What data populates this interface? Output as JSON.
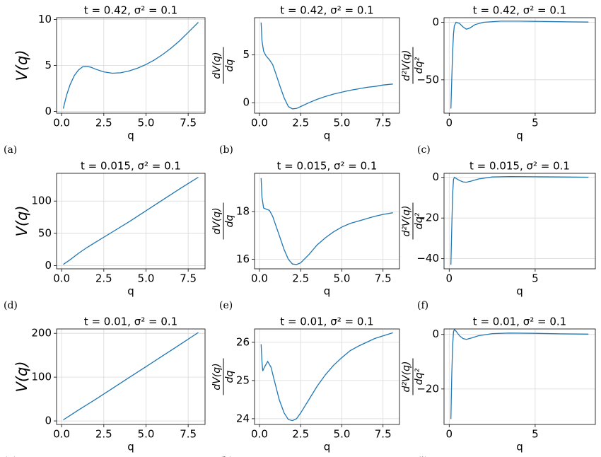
{
  "chart_data": [
    {
      "type": "line",
      "panel_label": "(a)",
      "title": "t = 0.42, σ² = 0.1",
      "xlabel": "q",
      "ylabel": "V(q)",
      "color": "#1f77b4",
      "grid": true,
      "x": [
        0.1,
        0.3,
        0.5,
        0.75,
        1.0,
        1.25,
        1.5,
        1.75,
        2.0,
        2.5,
        3.0,
        3.5,
        4.0,
        4.5,
        5.0,
        5.5,
        6.0,
        6.5,
        7.0,
        7.5,
        8.1
      ],
      "values": [
        0.3,
        1.8,
        2.9,
        3.9,
        4.5,
        4.85,
        4.9,
        4.8,
        4.6,
        4.3,
        4.15,
        4.2,
        4.4,
        4.7,
        5.1,
        5.6,
        6.2,
        6.9,
        7.7,
        8.6,
        9.7
      ],
      "xlim": [
        -0.3,
        8.5
      ],
      "ylim": [
        -0.2,
        10.2
      ],
      "xticks": [
        {
          "value": 0,
          "label": "0.0"
        },
        2.5,
        {
          "value": 5,
          "label": "5.0"
        },
        7.5
      ],
      "yticks": [
        0,
        5,
        10
      ]
    },
    {
      "type": "line",
      "panel_label": "(b)",
      "title": "t = 0.42, σ² = 0.1",
      "xlabel": "q",
      "ylabel": {
        "numerator": "dV(q)",
        "denominator": "dq"
      },
      "color": "#1f77b4",
      "grid": true,
      "x": [
        0.1,
        0.15,
        0.25,
        0.4,
        0.6,
        0.8,
        1.0,
        1.25,
        1.5,
        1.75,
        2.0,
        2.25,
        2.5,
        3.0,
        3.5,
        4.0,
        4.5,
        5.0,
        5.5,
        6.0,
        6.5,
        7.0,
        7.5,
        8.1
      ],
      "values": [
        8.4,
        6.5,
        5.4,
        4.9,
        4.5,
        4.0,
        3.0,
        1.7,
        0.5,
        -0.4,
        -0.65,
        -0.6,
        -0.4,
        0.0,
        0.35,
        0.65,
        0.9,
        1.1,
        1.3,
        1.45,
        1.6,
        1.7,
        1.85,
        1.95
      ],
      "xlim": [
        -0.3,
        8.5
      ],
      "ylim": [
        -1.1,
        8.9
      ],
      "xticks": [
        {
          "value": 0,
          "label": "0.0"
        },
        2.5,
        {
          "value": 5,
          "label": "5.0"
        },
        7.5
      ],
      "yticks": [
        0,
        5
      ]
    },
    {
      "type": "line",
      "panel_label": "(c)",
      "title": "t = 0.42, σ² = 0.1",
      "xlabel": "q",
      "ylabel": {
        "numerator": "d²V(q)",
        "denominator": "dq²"
      },
      "color": "#1f77b4",
      "grid": true,
      "x": [
        0.1,
        0.15,
        0.2,
        0.25,
        0.3,
        0.4,
        0.6,
        0.8,
        1.0,
        1.2,
        1.5,
        2.0,
        3.0,
        4.0,
        5.0,
        6.0,
        7.0,
        8.1
      ],
      "values": [
        -75,
        -50,
        -25,
        -10,
        -3,
        0,
        -1,
        -4,
        -6,
        -5,
        -2,
        0,
        1,
        1,
        0.8,
        0.6,
        0.4,
        0.2
      ],
      "xlim": [
        -0.3,
        8.5
      ],
      "ylim": [
        -79,
        4
      ],
      "xticks": [
        0,
        5
      ],
      "yticks": [
        {
          "value": -50,
          "label": "−50"
        },
        0
      ]
    },
    {
      "type": "line",
      "panel_label": "(d)",
      "title": "t = 0.015, σ² = 0.1",
      "xlabel": "q",
      "ylabel": "V(q)",
      "color": "#1f77b4",
      "grid": true,
      "x": [
        0.1,
        0.5,
        1.0,
        1.5,
        2.0,
        3.0,
        4.0,
        5.0,
        6.0,
        7.0,
        8.1
      ],
      "values": [
        1.8,
        9,
        19,
        28,
        36,
        52,
        68,
        85,
        102,
        119,
        137
      ],
      "xlim": [
        -0.3,
        8.5
      ],
      "ylim": [
        -5,
        143
      ],
      "xticks": [
        {
          "value": 0,
          "label": "0.0"
        },
        2.5,
        {
          "value": 5,
          "label": "5.0"
        },
        7.5
      ],
      "yticks": [
        0,
        50,
        100
      ]
    },
    {
      "type": "line",
      "panel_label": "(e)",
      "title": "t = 0.015, σ² = 0.1",
      "xlabel": "q",
      "ylabel": {
        "numerator": "dV(q)",
        "denominator": "dq"
      },
      "color": "#1f77b4",
      "grid": true,
      "x": [
        0.1,
        0.15,
        0.25,
        0.4,
        0.6,
        0.8,
        1.0,
        1.25,
        1.5,
        1.75,
        2.0,
        2.25,
        2.5,
        3.0,
        3.5,
        4.0,
        4.5,
        5.0,
        5.5,
        6.0,
        6.5,
        7.0,
        7.5,
        8.1
      ],
      "values": [
        19.4,
        18.6,
        18.15,
        18.1,
        18.05,
        17.8,
        17.4,
        16.9,
        16.4,
        16.0,
        15.8,
        15.78,
        15.85,
        16.2,
        16.6,
        16.9,
        17.15,
        17.35,
        17.5,
        17.6,
        17.7,
        17.8,
        17.88,
        17.95
      ],
      "xlim": [
        -0.3,
        8.5
      ],
      "ylim": [
        15.6,
        19.6
      ],
      "xticks": [
        {
          "value": 0,
          "label": "0.0"
        },
        2.5,
        {
          "value": 5,
          "label": "5.0"
        },
        7.5
      ],
      "yticks": [
        16,
        18
      ]
    },
    {
      "type": "line",
      "panel_label": "(f)",
      "title": "t = 0.015, σ² = 0.1",
      "xlabel": "q",
      "ylabel": {
        "numerator": "d²V(q)",
        "denominator": "dq²"
      },
      "color": "#1f77b4",
      "grid": true,
      "x": [
        0.1,
        0.15,
        0.2,
        0.25,
        0.3,
        0.4,
        0.6,
        0.8,
        1.0,
        1.3,
        1.7,
        2.5,
        3.5,
        5.0,
        6.5,
        8.1
      ],
      "values": [
        -43,
        -25,
        -8,
        -1,
        0,
        -0.5,
        -1.5,
        -2.2,
        -2.4,
        -1.8,
        -0.8,
        0.2,
        0.4,
        0.3,
        0.2,
        0.1
      ],
      "xlim": [
        -0.3,
        8.5
      ],
      "ylim": [
        -45,
        2
      ],
      "xticks": [
        0,
        5
      ],
      "yticks": [
        {
          "value": -40,
          "label": "−40"
        },
        {
          "value": -20,
          "label": "−20"
        },
        0
      ]
    },
    {
      "type": "line",
      "panel_label": "(g)",
      "title": "t = 0.01, σ² = 0.1",
      "xlabel": "q",
      "ylabel": "V(q)",
      "color": "#1f77b4",
      "grid": true,
      "x": [
        0.1,
        0.5,
        1.0,
        2.0,
        3.0,
        4.0,
        5.0,
        6.0,
        7.0,
        8.1
      ],
      "values": [
        2.5,
        12.5,
        25,
        49,
        74,
        99,
        124,
        149,
        174,
        202
      ],
      "xlim": [
        -0.3,
        8.5
      ],
      "ylim": [
        -8,
        210
      ],
      "xticks": [
        {
          "value": 0,
          "label": "0.0"
        },
        2.5,
        {
          "value": 5,
          "label": "5.0"
        },
        7.5
      ],
      "yticks": [
        0,
        100,
        200
      ]
    },
    {
      "type": "line",
      "panel_label": "(h)",
      "title": "t = 0.01, σ² = 0.1",
      "xlabel": "q",
      "ylabel": {
        "numerator": "dV(q)",
        "denominator": "dq"
      },
      "color": "#1f77b4",
      "grid": true,
      "x": [
        0.1,
        0.15,
        0.2,
        0.3,
        0.5,
        0.7,
        0.9,
        1.2,
        1.5,
        1.75,
        2.0,
        2.25,
        2.5,
        3.0,
        3.5,
        4.0,
        4.5,
        5.0,
        5.5,
        6.0,
        6.5,
        7.0,
        7.5,
        8.1
      ],
      "values": [
        25.95,
        25.5,
        25.25,
        25.35,
        25.5,
        25.35,
        25.0,
        24.5,
        24.15,
        23.98,
        23.95,
        24.0,
        24.15,
        24.5,
        24.85,
        25.15,
        25.4,
        25.6,
        25.78,
        25.9,
        26.0,
        26.1,
        26.17,
        26.25
      ],
      "xlim": [
        -0.3,
        8.5
      ],
      "ylim": [
        23.85,
        26.35
      ],
      "xticks": [
        {
          "value": 0,
          "label": "0.0"
        },
        2.5,
        {
          "value": 5,
          "label": "5.0"
        },
        7.5
      ],
      "yticks": [
        24,
        25,
        26
      ]
    },
    {
      "type": "line",
      "panel_label": "(i)",
      "title": "t = 0.01, σ² = 0.1",
      "xlabel": "q",
      "ylabel": {
        "numerator": "d²V(q)",
        "denominator": "dq²"
      },
      "color": "#1f77b4",
      "grid": true,
      "x": [
        0.1,
        0.15,
        0.2,
        0.25,
        0.3,
        0.4,
        0.6,
        0.8,
        1.0,
        1.3,
        1.7,
        2.5,
        3.5,
        5.0,
        6.5,
        8.1
      ],
      "values": [
        -31,
        -15,
        -4,
        1,
        1.8,
        1.2,
        -0.5,
        -1.5,
        -1.8,
        -1.3,
        -0.5,
        0.3,
        0.5,
        0.4,
        0.2,
        0.1
      ],
      "xlim": [
        -0.3,
        8.5
      ],
      "ylim": [
        -33,
        2
      ],
      "xticks": [
        0,
        5
      ],
      "yticks": [
        {
          "value": -20,
          "label": "−20"
        },
        0
      ]
    }
  ]
}
